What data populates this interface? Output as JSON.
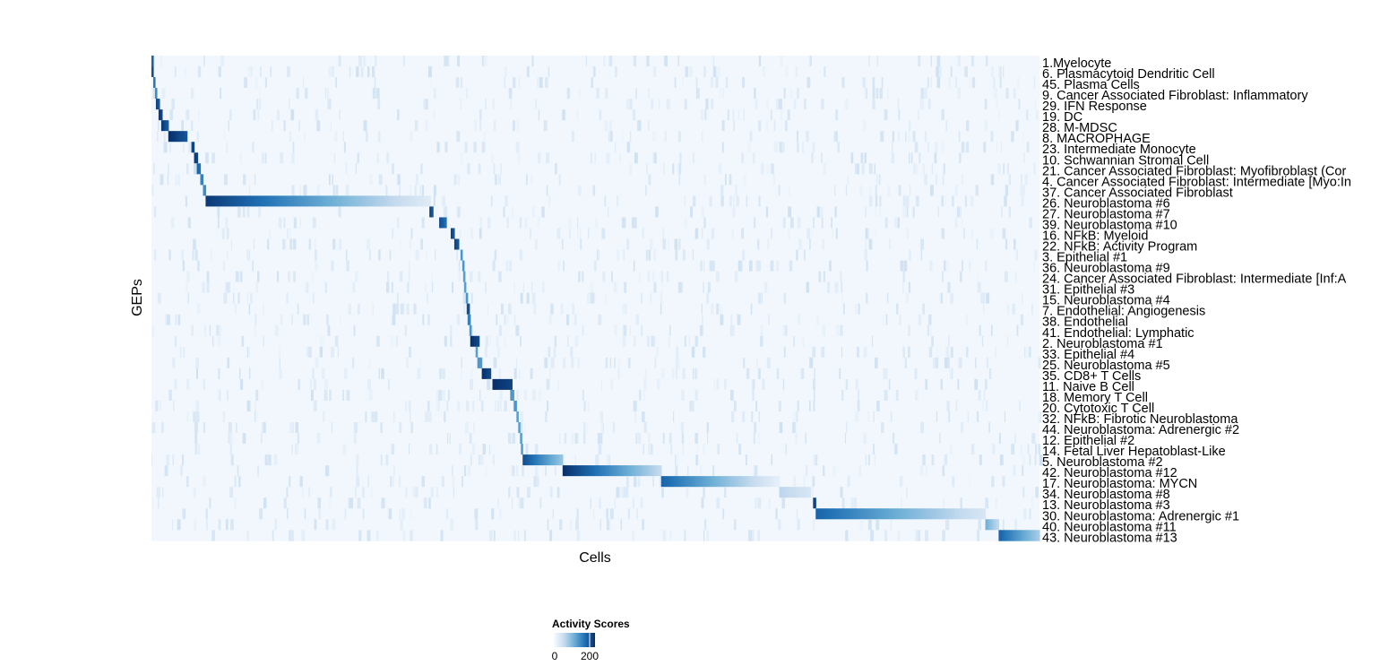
{
  "chart_data": {
    "type": "heatmap",
    "xlabel": "Cells",
    "ylabel": "GEPs",
    "legend": {
      "title": "Activity Scores",
      "ticks": [
        0,
        200
      ],
      "range": [
        0,
        250
      ],
      "colors": [
        "#f7fbff",
        "#c6dbef",
        "#6baed6",
        "#2171b5",
        "#08306b"
      ],
      "placement": "bottom"
    },
    "rows": [
      {
        "label": "1.Myelocyte",
        "block": [
          0,
          0.2,
          200,
          200
        ]
      },
      {
        "label": "6. Plasmacytoid Dendritic Cell",
        "block": [
          0,
          0.2,
          220,
          220
        ]
      },
      {
        "label": "45. Plasma Cells",
        "block": [
          0.2,
          0.4,
          180,
          180
        ]
      },
      {
        "label": "9. Cancer Associated Fibroblast: Inflammatory",
        "block": [
          0.4,
          0.6,
          160,
          160
        ]
      },
      {
        "label": "29. IFN Response",
        "block": [
          0.5,
          0.9,
          230,
          200
        ]
      },
      {
        "label": "19. DC",
        "block": [
          0.8,
          1.2,
          240,
          220
        ]
      },
      {
        "label": "28. M-MDSC",
        "block": [
          1.1,
          1.9,
          240,
          200
        ]
      },
      {
        "label": "8. MACROPHAGE",
        "block": [
          1.9,
          4.0,
          250,
          210
        ]
      },
      {
        "label": "23. Intermediate Monocyte",
        "block": [
          4.5,
          4.8,
          230,
          220
        ]
      },
      {
        "label": "10. Schwannian Stromal Cell",
        "block": [
          4.8,
          5.2,
          240,
          220
        ]
      },
      {
        "label": "21. Cancer Associated Fibroblast: Myofibroblast (Cor",
        "block": [
          5.1,
          5.5,
          200,
          180
        ]
      },
      {
        "label": "4. Cancer Associated Fibroblast: Intermediate [Myo:In",
        "block": [
          5.5,
          5.8,
          170,
          150
        ]
      },
      {
        "label": "37. Cancer Associated Fibroblast",
        "block": [
          5.8,
          6.1,
          160,
          150
        ]
      },
      {
        "label": "26. Neuroblastoma #6",
        "block": [
          6.1,
          31.4,
          240,
          30
        ]
      },
      {
        "label": "27. Neuroblastoma #7",
        "block": [
          31.3,
          31.7,
          230,
          200
        ]
      },
      {
        "label": "39. Neuroblastoma #10",
        "block": [
          32.4,
          33.2,
          220,
          180
        ]
      },
      {
        "label": "16. NFkB: Myeloid",
        "block": [
          33.7,
          34.1,
          230,
          200
        ]
      },
      {
        "label": "22. NFkB: Activity Program",
        "block": [
          34.1,
          34.6,
          230,
          200
        ]
      },
      {
        "label": "3. Epithelial #1",
        "block": [
          34.8,
          35.0,
          150,
          150
        ]
      },
      {
        "label": "36. Neuroblastoma #9",
        "block": [
          35.0,
          35.2,
          150,
          150
        ]
      },
      {
        "label": "24. Cancer Associated Fibroblast: Intermediate [Inf:A",
        "block": [
          35.1,
          35.3,
          140,
          140
        ]
      },
      {
        "label": "31. Epithelial #3",
        "block": [
          35.2,
          35.4,
          140,
          140
        ]
      },
      {
        "label": "15. Neuroblastoma #4",
        "block": [
          35.4,
          35.6,
          150,
          150
        ]
      },
      {
        "label": "7. Endothelial: Angiogenesis",
        "block": [
          35.5,
          35.8,
          220,
          200
        ]
      },
      {
        "label": "38. Endothelial",
        "block": [
          35.6,
          35.9,
          170,
          160
        ]
      },
      {
        "label": "41. Endothelial: Lymphatic",
        "block": [
          35.8,
          36.0,
          150,
          150
        ]
      },
      {
        "label": "2. Neuroblastoma #1",
        "block": [
          35.9,
          36.9,
          250,
          220
        ]
      },
      {
        "label": "33. Epithelial #4",
        "block": [
          36.5,
          36.7,
          140,
          140
        ]
      },
      {
        "label": "25. Neuroblastoma #5",
        "block": [
          36.7,
          37.2,
          150,
          140
        ]
      },
      {
        "label": "35. CD8+ T Cells",
        "block": [
          37.2,
          38.2,
          250,
          220
        ]
      },
      {
        "label": "11. Naive B Cell",
        "block": [
          38.4,
          40.6,
          250,
          230
        ]
      },
      {
        "label": "18. Memory T Cell",
        "block": [
          40.4,
          40.8,
          150,
          140
        ]
      },
      {
        "label": "20. Cytotoxic T Cell",
        "block": [
          40.8,
          41.1,
          150,
          140
        ]
      },
      {
        "label": "32. NFkB: Fibrotic Neuroblastoma",
        "block": [
          41.1,
          41.3,
          140,
          140
        ]
      },
      {
        "label": "44. Neuroblastoma: Adrenergic #2",
        "block": [
          41.3,
          41.5,
          140,
          140
        ]
      },
      {
        "label": "12. Epithelial #2",
        "block": [
          41.5,
          41.7,
          140,
          140
        ]
      },
      {
        "label": "14. Fetal Liver Hepatoblast-Like",
        "block": [
          41.6,
          41.8,
          140,
          140
        ]
      },
      {
        "label": "5. Neuroblastoma #2",
        "block": [
          41.8,
          46.3,
          220,
          90
        ]
      },
      {
        "label": "42. Neuroblastoma #12",
        "block": [
          46.3,
          57.4,
          250,
          60
        ]
      },
      {
        "label": "17. Neuroblastoma: MYCN",
        "block": [
          57.4,
          70.7,
          200,
          20
        ]
      },
      {
        "label": "34. Neuroblastoma #8",
        "block": [
          70.7,
          74.2,
          70,
          40
        ]
      },
      {
        "label": "13. Neuroblastoma #3",
        "block": [
          74.5,
          74.8,
          230,
          220
        ]
      },
      {
        "label": "30. Neuroblastoma: Adrenergic #1",
        "block": [
          74.8,
          93.9,
          200,
          40
        ]
      },
      {
        "label": "40. Neuroblastoma #11",
        "block": [
          93.9,
          95.4,
          120,
          60
        ]
      },
      {
        "label": "43. Neuroblastoma #13",
        "block": [
          95.4,
          100,
          200,
          80
        ]
      }
    ]
  }
}
